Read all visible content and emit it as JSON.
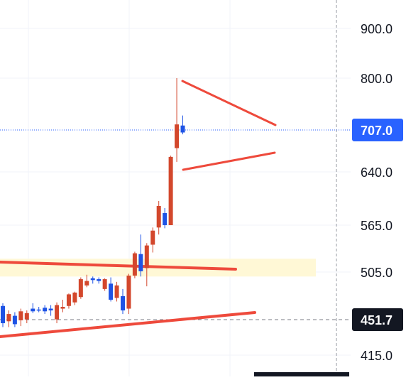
{
  "chart_data": {
    "type": "candlestick",
    "y_axis_ticks": [
      {
        "value": 900,
        "label": "900.0"
      },
      {
        "value": 800,
        "label": "800.0"
      },
      {
        "value": 640,
        "label": "640.0"
      },
      {
        "value": 565,
        "label": "565.0"
      },
      {
        "value": 505,
        "label": "505.0"
      },
      {
        "value": 415,
        "label": "415.0"
      }
    ],
    "price_badges": [
      {
        "value": 707,
        "label": "707.0",
        "color": "#2962ff",
        "line": "dotted",
        "text_color": "#ffffff"
      },
      {
        "value": 451.7,
        "label": "451.7",
        "color": "#131722",
        "line": "dashed",
        "text_color": "#ffffff"
      }
    ],
    "candles": [
      {
        "o": 467,
        "h": 470,
        "l": 444,
        "c": 448,
        "color": "blue"
      },
      {
        "o": 450,
        "h": 462,
        "l": 444,
        "c": 458,
        "color": "red"
      },
      {
        "o": 447,
        "h": 460,
        "l": 444,
        "c": 456,
        "color": "blue"
      },
      {
        "o": 451,
        "h": 464,
        "l": 445,
        "c": 461,
        "color": "red"
      },
      {
        "o": 452,
        "h": 462,
        "l": 448,
        "c": 459,
        "color": "red"
      },
      {
        "o": 464,
        "h": 470,
        "l": 459,
        "c": 461,
        "color": "blue"
      },
      {
        "o": 463,
        "h": 466,
        "l": 460,
        "c": 463,
        "color": "blue"
      },
      {
        "o": 461,
        "h": 468,
        "l": 458,
        "c": 465,
        "color": "blue"
      },
      {
        "o": 462,
        "h": 468,
        "l": 456,
        "c": 464,
        "color": "blue"
      },
      {
        "o": 452,
        "h": 471,
        "l": 448,
        "c": 468,
        "color": "red"
      },
      {
        "o": 464,
        "h": 474,
        "l": 460,
        "c": 466,
        "color": "red"
      },
      {
        "o": 467,
        "h": 481,
        "l": 464,
        "c": 480,
        "color": "red"
      },
      {
        "o": 471,
        "h": 483,
        "l": 468,
        "c": 482,
        "color": "red"
      },
      {
        "o": 477,
        "h": 499,
        "l": 475,
        "c": 497,
        "color": "red"
      },
      {
        "o": 490,
        "h": 502,
        "l": 488,
        "c": 495,
        "color": "red"
      },
      {
        "o": 498,
        "h": 500,
        "l": 492,
        "c": 496,
        "color": "blue"
      },
      {
        "o": 497,
        "h": 499,
        "l": 492,
        "c": 495,
        "color": "blue"
      },
      {
        "o": 497,
        "h": 498,
        "l": 484,
        "c": 486,
        "color": "red"
      },
      {
        "o": 492,
        "h": 499,
        "l": 472,
        "c": 474,
        "color": "blue"
      },
      {
        "o": 476,
        "h": 494,
        "l": 472,
        "c": 490,
        "color": "red"
      },
      {
        "o": 478,
        "h": 486,
        "l": 458,
        "c": 462,
        "color": "blue"
      },
      {
        "o": 464,
        "h": 503,
        "l": 458,
        "c": 501,
        "color": "red"
      },
      {
        "o": 501,
        "h": 531,
        "l": 498,
        "c": 529,
        "color": "red"
      },
      {
        "o": 528,
        "h": 553,
        "l": 500,
        "c": 506,
        "color": "blue"
      },
      {
        "o": 510,
        "h": 542,
        "l": 489,
        "c": 539,
        "color": "red"
      },
      {
        "o": 540,
        "h": 562,
        "l": 530,
        "c": 558,
        "color": "red"
      },
      {
        "o": 562,
        "h": 599,
        "l": 553,
        "c": 592,
        "color": "red"
      },
      {
        "o": 582,
        "h": 589,
        "l": 561,
        "c": 565,
        "color": "blue"
      },
      {
        "o": 565,
        "h": 666,
        "l": 565,
        "c": 664,
        "color": "red"
      },
      {
        "o": 678,
        "h": 800,
        "l": 656,
        "c": 717,
        "color": "red"
      },
      {
        "o": 703,
        "h": 733,
        "l": 700,
        "c": 715,
        "color": "blue"
      }
    ]
  }
}
